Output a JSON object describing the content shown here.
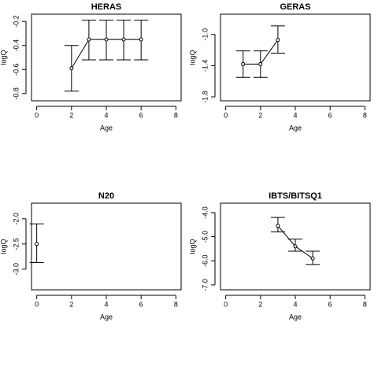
{
  "chart_data": [
    {
      "type": "errorbar",
      "title": "HERAS",
      "xlabel": "Age",
      "ylabel": "logQ",
      "color": "#000000",
      "x": [
        2,
        3,
        4,
        5,
        6
      ],
      "values": [
        -0.59,
        -0.35,
        -0.35,
        -0.35,
        -0.35
      ],
      "lower": [
        -0.78,
        -0.52,
        -0.52,
        -0.52,
        -0.52
      ],
      "upper": [
        -0.4,
        -0.19,
        -0.19,
        -0.19,
        -0.19
      ],
      "xlim": [
        -0.3,
        8.3
      ],
      "xticks": [
        0,
        2,
        4,
        6,
        8
      ],
      "ylim": [
        -0.86,
        -0.14
      ],
      "yticks": [
        -0.2,
        -0.4,
        -0.6,
        -0.8
      ]
    },
    {
      "type": "errorbar",
      "title": "GERAS",
      "xlabel": "Age",
      "ylabel": "logQ",
      "color": "#000000",
      "x": [
        1,
        2,
        3
      ],
      "values": [
        -1.38,
        -1.38,
        -1.07
      ],
      "lower": [
        -1.55,
        -1.55,
        -1.24
      ],
      "upper": [
        -1.21,
        -1.21,
        -0.89
      ],
      "xlim": [
        -0.3,
        8.3
      ],
      "xticks": [
        0,
        2,
        4,
        6,
        8
      ],
      "ylim": [
        -1.85,
        -0.74
      ],
      "yticks": [
        {
          "value": -1,
          "label": "-1.0"
        },
        -1.4,
        -1.8
      ]
    },
    {
      "type": "errorbar",
      "title": "N20",
      "xlabel": "Age",
      "ylabel": "logQ",
      "color": "#000000",
      "x": [
        0
      ],
      "values": [
        -2.5
      ],
      "lower": [
        -2.87
      ],
      "upper": [
        -2.1
      ],
      "xlim": [
        -0.3,
        8.3
      ],
      "xticks": [
        0,
        2,
        4,
        6,
        8
      ],
      "ylim": [
        -3.41,
        -1.69
      ],
      "yticks": [
        {
          "value": -2,
          "label": "-2.0"
        },
        -2.5,
        {
          "value": -3,
          "label": "-3.0"
        }
      ]
    },
    {
      "type": "errorbar",
      "title": "IBTS/BITSQ1",
      "xlabel": "Age",
      "ylabel": "logQ",
      "color": "#000000",
      "x": [
        3,
        4,
        5
      ],
      "values": [
        -4.55,
        -5.4,
        -5.9
      ],
      "lower": [
        -4.8,
        -5.6,
        -6.15
      ],
      "upper": [
        -4.2,
        -5.1,
        -5.6
      ],
      "xlim": [
        -0.3,
        8.3
      ],
      "xticks": [
        0,
        2,
        4,
        6,
        8
      ],
      "ylim": [
        -7.2,
        -3.61
      ],
      "yticks": [
        {
          "value": -4,
          "label": "-4.0"
        },
        {
          "value": -5,
          "label": "-5.0"
        },
        {
          "value": -6,
          "label": "-6.0"
        },
        {
          "value": -7,
          "label": "-7.0"
        }
      ]
    }
  ]
}
